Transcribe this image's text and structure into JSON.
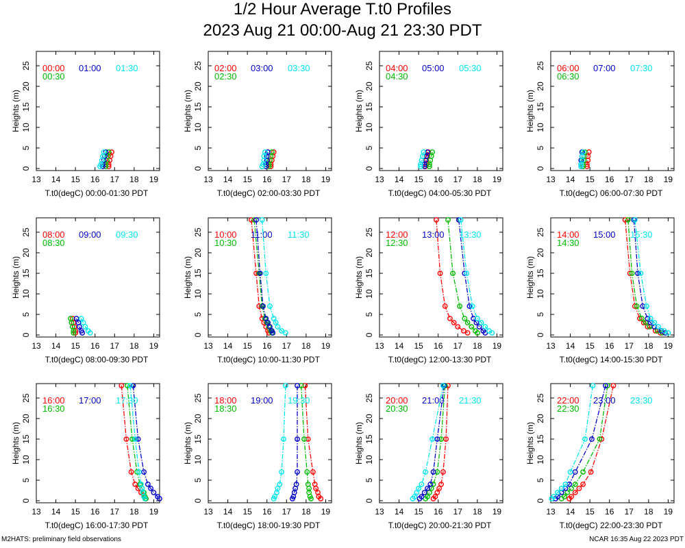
{
  "title": "1/2 Hour Average T.t0 Profiles",
  "subtitle": "2023 Aug 21 00:00-Aug 21 23:30 PDT",
  "footer_left": "M2HATS: preliminary field observations",
  "footer_right": "NCAR 16:35 Aug 22 2023 PDT",
  "colors": {
    "series": [
      "#ff0000",
      "#00bb00",
      "#0000cc",
      "#00e5ee"
    ]
  },
  "chart_data": {
    "type": "line",
    "xlabel_prefix": "T.t0(degC)",
    "ylabel": "Heights (m)",
    "xlim": [
      13,
      19.3
    ],
    "ylim": [
      -0.5,
      28.5
    ],
    "xticks": [
      13,
      14,
      15,
      16,
      17,
      18,
      19
    ],
    "yticks": [
      0,
      5,
      10,
      15,
      20,
      25
    ],
    "heights": [
      28,
      15,
      7,
      4,
      3,
      2,
      1,
      0.5
    ],
    "panels": [
      {
        "range": "00:00-01:30 PDT",
        "heights": [
          4,
          3,
          2,
          1,
          0.5
        ],
        "series": [
          {
            "name": "00:00",
            "values": [
              16.85,
              16.8,
              16.75,
              16.7,
              16.7
            ]
          },
          {
            "name": "00:30",
            "values": [
              16.7,
              16.65,
              16.6,
              16.55,
              16.55
            ]
          },
          {
            "name": "01:00",
            "values": [
              16.55,
              16.5,
              16.45,
              16.4,
              16.4
            ]
          },
          {
            "name": "01:30",
            "values": [
              16.45,
              16.4,
              16.35,
              16.3,
              16.25
            ]
          }
        ]
      },
      {
        "range": "02:00-03:30 PDT",
        "heights": [
          4,
          3,
          2,
          1,
          0.5
        ],
        "series": [
          {
            "name": "02:00",
            "values": [
              16.35,
              16.3,
              16.25,
              16.2,
              16.2
            ]
          },
          {
            "name": "02:30",
            "values": [
              16.25,
              16.2,
              16.15,
              16.1,
              16.1
            ]
          },
          {
            "name": "03:00",
            "values": [
              16.05,
              16.0,
              16.0,
              15.95,
              15.95
            ]
          },
          {
            "name": "03:30",
            "values": [
              15.9,
              15.85,
              15.85,
              15.8,
              15.75
            ]
          }
        ]
      },
      {
        "range": "04:00-05:30 PDT",
        "heights": [
          4,
          3,
          2,
          1,
          0.5
        ],
        "series": [
          {
            "name": "04:00",
            "values": [
              15.5,
              15.45,
              15.4,
              15.4,
              15.35
            ]
          },
          {
            "name": "04:30",
            "values": [
              15.7,
              15.65,
              15.6,
              15.55,
              15.55
            ]
          },
          {
            "name": "05:00",
            "values": [
              15.45,
              15.4,
              15.35,
              15.3,
              15.3
            ]
          },
          {
            "name": "05:30",
            "values": [
              15.25,
              15.2,
              15.15,
              15.1,
              15.1
            ]
          }
        ]
      },
      {
        "range": "06:00-07:30 PDT",
        "heights": [
          4,
          3,
          2,
          1,
          0.5
        ],
        "series": [
          {
            "name": "06:00",
            "values": [
              14.95,
              14.9,
              14.9,
              14.85,
              14.85
            ]
          },
          {
            "name": "06:30",
            "values": [
              14.75,
              14.7,
              14.7,
              14.65,
              14.65
            ]
          },
          {
            "name": "07:00",
            "values": [
              14.6,
              14.6,
              14.55,
              14.55,
              14.55
            ]
          },
          {
            "name": "07:30",
            "values": [
              14.65,
              14.6,
              14.6,
              14.55,
              14.55
            ]
          }
        ]
      },
      {
        "range": "08:00-09:30 PDT",
        "heights": [
          4,
          3,
          2,
          1,
          0.5
        ],
        "series": [
          {
            "name": "08:00",
            "values": [
              14.85,
              14.9,
              14.95,
              15.0,
              15.0
            ]
          },
          {
            "name": "08:30",
            "values": [
              14.75,
              14.8,
              14.85,
              14.9,
              14.9
            ]
          },
          {
            "name": "09:00",
            "values": [
              15.05,
              15.15,
              15.2,
              15.3,
              15.35
            ]
          },
          {
            "name": "09:30",
            "values": [
              15.3,
              15.4,
              15.5,
              15.65,
              15.75
            ]
          }
        ]
      },
      {
        "range": "10:00-11:30 PDT",
        "heights": [
          28,
          15,
          7,
          4,
          3,
          2,
          1,
          0.5
        ],
        "series": [
          {
            "name": "10:00",
            "values": [
              15.2,
              15.45,
              15.6,
              15.75,
              15.85,
              15.95,
              16.05,
              16.1
            ]
          },
          {
            "name": "10:30",
            "values": [
              15.35,
              15.6,
              15.75,
              15.9,
              16.0,
              16.1,
              16.2,
              16.25
            ]
          },
          {
            "name": "11:00",
            "values": [
              15.45,
              15.65,
              15.8,
              15.95,
              16.05,
              16.15,
              16.25,
              16.3
            ]
          },
          {
            "name": "11:30",
            "values": [
              15.75,
              15.95,
              16.15,
              16.35,
              16.45,
              16.55,
              16.75,
              16.95
            ]
          }
        ]
      },
      {
        "range": "12:00-13:30 PDT",
        "heights": [
          28,
          15,
          7,
          4,
          3,
          2,
          1,
          0.5
        ],
        "series": [
          {
            "name": "12:00",
            "values": [
              15.9,
              16.1,
              16.35,
              16.6,
              16.8,
              17.0,
              17.3,
              17.5
            ]
          },
          {
            "name": "12:30",
            "values": [
              16.5,
              16.75,
              17.1,
              17.35,
              17.5,
              17.7,
              17.9,
              18.0
            ]
          },
          {
            "name": "13:00",
            "values": [
              17.05,
              17.35,
              17.6,
              17.8,
              17.95,
              18.1,
              18.3,
              18.4
            ]
          },
          {
            "name": "13:30",
            "values": [
              17.15,
              17.45,
              17.75,
              18.0,
              18.2,
              18.4,
              18.6,
              18.75
            ]
          }
        ]
      },
      {
        "range": "14:00-15:30 PDT",
        "heights": [
          28,
          15,
          7,
          4,
          3,
          2,
          1,
          0.5
        ],
        "series": [
          {
            "name": "14:00",
            "values": [
              16.8,
              17.05,
              17.3,
              17.55,
              17.75,
              17.95,
              18.35,
              18.6
            ]
          },
          {
            "name": "14:30",
            "values": [
              16.95,
              17.15,
              17.4,
              17.65,
              17.85,
              18.05,
              18.45,
              18.7
            ]
          },
          {
            "name": "15:00",
            "values": [
              17.25,
              17.45,
              17.7,
              17.95,
              18.1,
              18.3,
              18.65,
              18.85
            ]
          },
          {
            "name": "15:30",
            "values": [
              17.3,
              17.6,
              17.9,
              18.1,
              18.3,
              18.5,
              18.8,
              19.0
            ]
          }
        ]
      },
      {
        "range": "16:00-17:30 PDT",
        "heights": [
          28,
          15,
          7,
          4,
          3,
          2,
          1,
          0.5
        ],
        "series": [
          {
            "name": "16:00",
            "values": [
              17.35,
              17.6,
              17.85,
              18.05,
              18.2,
              18.35,
              18.5,
              18.6
            ]
          },
          {
            "name": "16:30",
            "values": [
              17.65,
              17.9,
              18.15,
              18.3,
              18.4,
              18.5,
              18.55,
              18.6
            ]
          },
          {
            "name": "17:00",
            "values": [
              17.95,
              18.2,
              18.5,
              18.7,
              18.85,
              19.0,
              19.2,
              19.3
            ]
          },
          {
            "name": "17:30",
            "values": [
              17.8,
              18.05,
              18.25,
              18.35,
              18.4,
              18.45,
              18.5,
              18.55
            ]
          }
        ]
      },
      {
        "range": "18:00-19:30 PDT",
        "heights": [
          28,
          15,
          7,
          4,
          3,
          2,
          1,
          0.5
        ],
        "series": [
          {
            "name": "18:00",
            "values": [
              17.95,
              18.1,
              18.35,
              18.45,
              18.5,
              18.6,
              18.65,
              18.75
            ]
          },
          {
            "name": "18:30",
            "values": [
              17.75,
              17.9,
              18.05,
              18.1,
              18.15,
              18.15,
              18.2,
              18.25
            ]
          },
          {
            "name": "19:00",
            "values": [
              17.55,
              17.55,
              17.55,
              17.5,
              17.45,
              17.4,
              17.35,
              17.3
            ]
          },
          {
            "name": "19:30",
            "values": [
              16.95,
              16.85,
              16.75,
              16.65,
              16.55,
              16.5,
              16.4,
              16.35
            ]
          }
        ]
      },
      {
        "range": "20:00-21:30 PDT",
        "heights": [
          28,
          15,
          7,
          4,
          3,
          2,
          1,
          0.5
        ],
        "series": [
          {
            "name": "20:00",
            "values": [
              16.5,
              16.4,
              16.25,
              16.15,
              16.05,
              15.95,
              15.85,
              15.75
            ]
          },
          {
            "name": "20:30",
            "values": [
              16.35,
              16.15,
              15.95,
              15.75,
              15.65,
              15.55,
              15.45,
              15.35
            ]
          },
          {
            "name": "21:00",
            "values": [
              16.3,
              15.95,
              15.75,
              15.6,
              15.45,
              15.3,
              15.15,
              15.05
            ]
          },
          {
            "name": "21:30",
            "values": [
              16.25,
              15.7,
              15.35,
              15.15,
              15.0,
              14.9,
              14.8,
              14.7
            ]
          }
        ]
      },
      {
        "range": "22:00-23:30 PDT",
        "heights": [
          28,
          15,
          7,
          4,
          3,
          2,
          1,
          0.5
        ],
        "series": [
          {
            "name": "22:00",
            "values": [
              16.2,
              15.6,
              15.05,
              14.65,
              14.45,
              14.25,
              14.05,
              13.95
            ]
          },
          {
            "name": "22:30",
            "values": [
              15.9,
              15.5,
              14.65,
              14.25,
              14.05,
              13.85,
              13.7,
              13.55
            ]
          },
          {
            "name": "23:00",
            "values": [
              15.8,
              15.1,
              14.25,
              13.95,
              13.75,
              13.55,
              13.35,
              13.25
            ]
          },
          {
            "name": "23:30",
            "values": [
              15.15,
              14.75,
              14.0,
              13.75,
              13.55,
              13.35,
              13.15,
              13.05
            ]
          }
        ]
      }
    ]
  }
}
